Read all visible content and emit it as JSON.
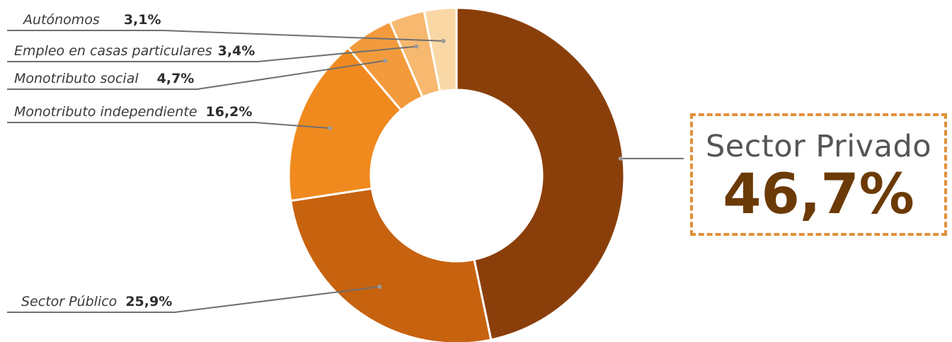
{
  "chart_data": {
    "type": "pie",
    "variant": "donut",
    "categories": [
      "Sector Privado",
      "Sector Público",
      "Monotributo independiente",
      "Monotributo social",
      "Empleo en casas particulares",
      "Autónomos"
    ],
    "values": [
      46.7,
      25.9,
      16.2,
      4.7,
      3.4,
      3.1
    ],
    "value_labels": [
      "46,7%",
      "25,9%",
      "16,2%",
      "4,7%",
      "3,4%",
      "3,1%"
    ],
    "colors": [
      "#8a3f0a",
      "#c7620f",
      "#f08a1e",
      "#f39a3c",
      "#f7b86f",
      "#f9d8a6"
    ],
    "title": "",
    "legend": "none"
  },
  "callout": {
    "name": "Sector Privado",
    "value": "46,7%"
  }
}
